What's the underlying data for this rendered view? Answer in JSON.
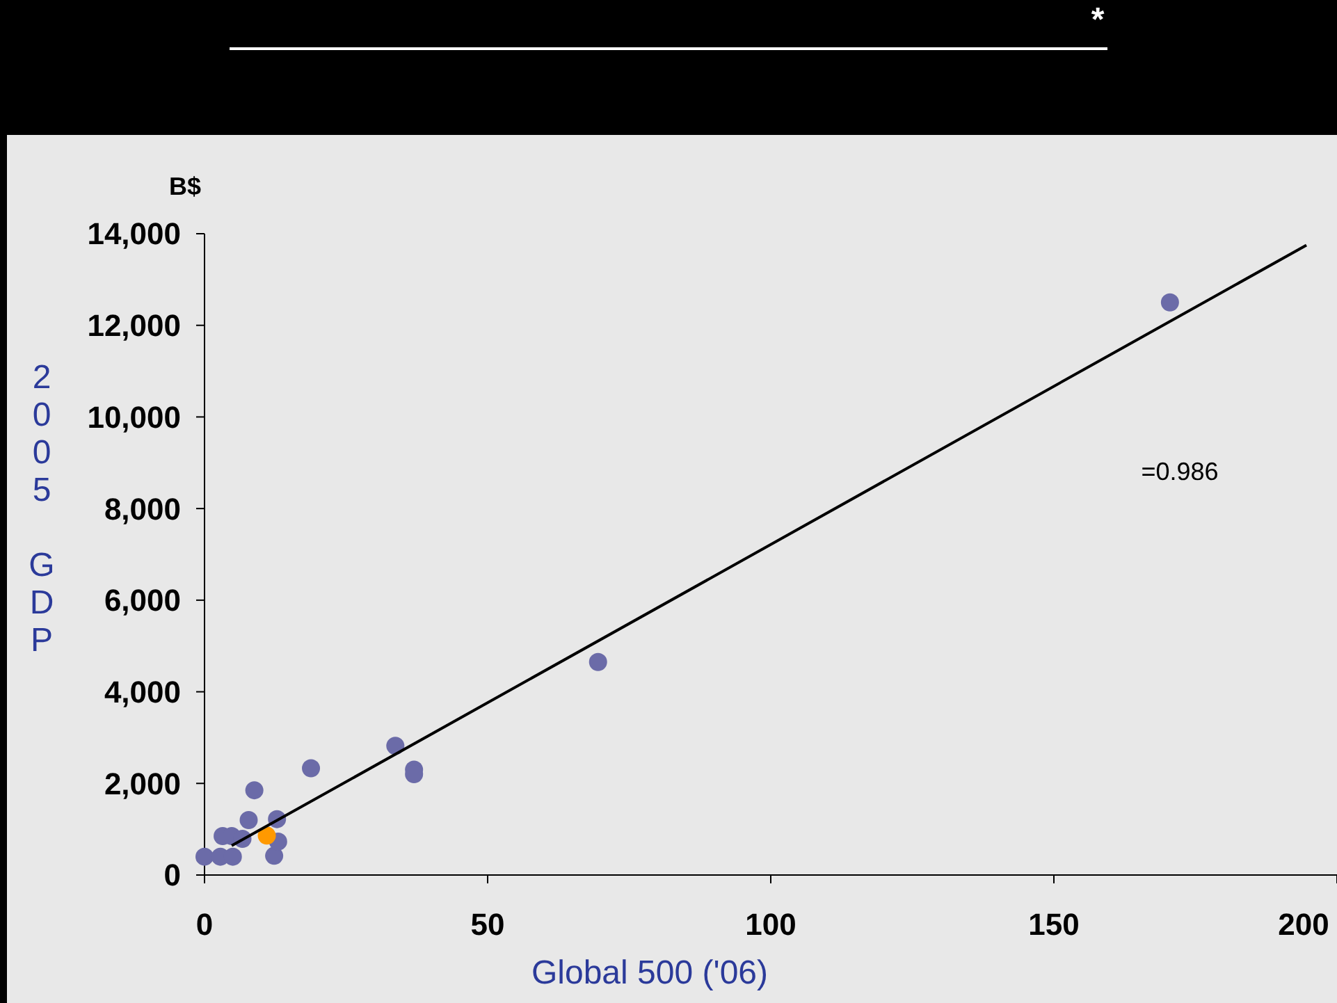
{
  "chart_data": {
    "type": "scatter",
    "xlabel": "Global 500 ('06)",
    "ylabel": "2005 GDP",
    "annotations": [
      "*",
      "B$",
      "=0.986"
    ],
    "xlim": [
      0,
      200
    ],
    "ylim": [
      0,
      14000
    ],
    "xticks": [
      0,
      50,
      100,
      150,
      200
    ],
    "yticks": [
      {
        "value": 0,
        "label": "0"
      },
      {
        "value": 2000,
        "label": "2,000"
      },
      {
        "value": 4000,
        "label": "4,000"
      },
      {
        "value": 6000,
        "label": "6,000"
      },
      {
        "value": 8000,
        "label": "8,000"
      },
      {
        "value": 10000,
        "label": "10,000"
      },
      {
        "value": 12000,
        "label": "12,000"
      },
      {
        "value": 14000,
        "label": "14,000"
      }
    ],
    "grid": false,
    "marker": "circle",
    "series": [
      {
        "color": "#6b6ba8",
        "x": [
          0,
          2.8,
          5,
          3.2,
          4.8,
          6.7,
          7.8,
          8.8,
          12.3,
          13,
          12.8,
          18.8,
          33.7,
          37,
          37,
          69.5,
          170.5
        ],
        "values": [
          400,
          400,
          400,
          850,
          850,
          790,
          1200,
          1850,
          420,
          730,
          1220,
          2330,
          2820,
          2300,
          2200,
          4650,
          12500
        ]
      },
      {
        "color": "#ff9900",
        "x": [
          11
        ],
        "values": [
          860
        ]
      },
      {
        "type": "line",
        "marker": "none",
        "color": "#000000",
        "x": [
          4.8,
          194.6
        ],
        "values": [
          640,
          13750
        ]
      }
    ]
  }
}
